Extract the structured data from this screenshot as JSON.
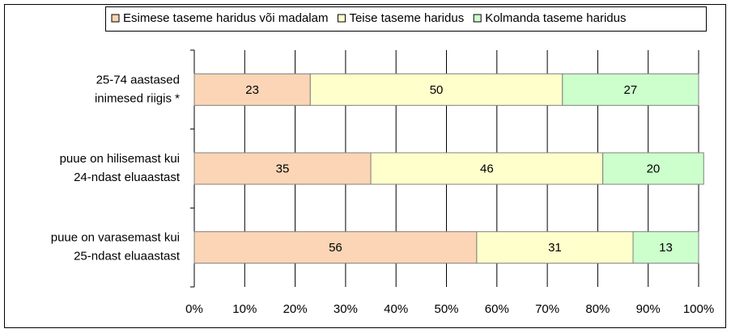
{
  "chart_data": {
    "type": "stacked_bar_horizontal",
    "categories": [
      [
        "25-74 aastased",
        "inimesed riigis *"
      ],
      [
        "puue on hilisemast kui",
        "24-ndast eluaastast"
      ],
      [
        "puue on varasemast kui",
        "25-ndast eluaastast"
      ]
    ],
    "series": [
      {
        "name": "Esimese taseme haridus või madalam",
        "color": "#fbd5b5",
        "values": [
          23,
          35,
          56
        ]
      },
      {
        "name": "Teise taseme haridus",
        "color": "#ffffcc",
        "values": [
          50,
          46,
          31
        ]
      },
      {
        "name": "Kolmanda taseme haridus",
        "color": "#ccffcc",
        "values": [
          27,
          20,
          13
        ]
      }
    ],
    "xlim": [
      0,
      100
    ],
    "xticks": [
      {
        "value": 0,
        "label": "0%"
      },
      {
        "value": 10,
        "label": "10%"
      },
      {
        "value": 20,
        "label": "20%"
      },
      {
        "value": 30,
        "label": "30%"
      },
      {
        "value": 40,
        "label": "40%"
      },
      {
        "value": 50,
        "label": "50%"
      },
      {
        "value": 60,
        "label": "60%"
      },
      {
        "value": 70,
        "label": "70%"
      },
      {
        "value": 80,
        "label": "80%"
      },
      {
        "value": 90,
        "label": "90%"
      },
      {
        "value": 100,
        "label": "100%"
      }
    ],
    "grid": true,
    "legend": "top"
  }
}
